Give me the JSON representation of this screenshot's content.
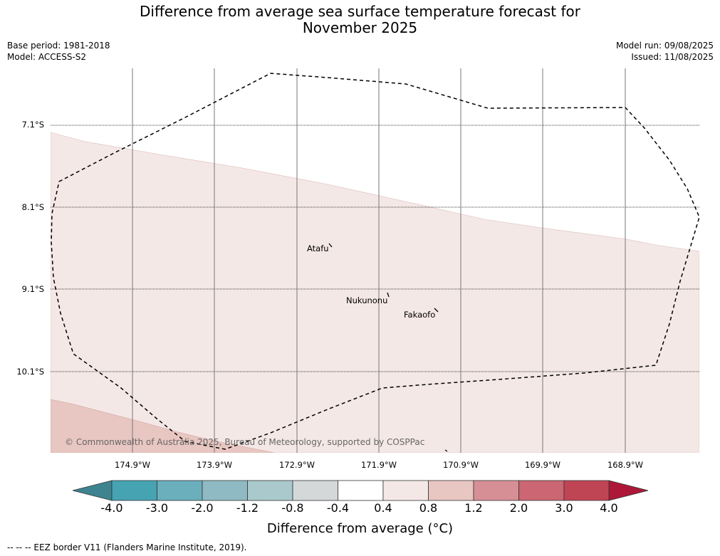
{
  "title_line1": "Difference from average sea surface temperature forecast for",
  "title_line2": "November 2025",
  "meta_left": [
    "Base period: 1981-2018",
    "Model: ACCESS-S2"
  ],
  "meta_right": [
    "Model run: 09/08/2025",
    "Issued: 11/08/2025"
  ],
  "lat_labels": [
    "7.1°S",
    "8.1°S",
    "9.1°S",
    "10.1°S"
  ],
  "lon_labels": [
    "174.9°W",
    "173.9°W",
    "172.9°W",
    "171.9°W",
    "170.9°W",
    "169.9°W",
    "168.9°W"
  ],
  "places": [
    "Atafu",
    "Nukunonu",
    "Fakaofo"
  ],
  "copyright": "© Commonwealth of Australia 2025, Bureau of Meteorology, supported by COSPPac",
  "colorbar": {
    "ticks": [
      "-4.0",
      "-3.0",
      "-2.0",
      "-1.2",
      "-0.8",
      "-0.4",
      "0.4",
      "0.8",
      "1.2",
      "2.0",
      "3.0",
      "4.0"
    ],
    "colors": [
      "#3e8390",
      "#46a3b2",
      "#6bafbd",
      "#8fbac4",
      "#aac9cd",
      "#d4d8d8",
      "#ffffff",
      "#f4e8e6",
      "#e8c6c1",
      "#d68f95",
      "#cb6672",
      "#bf4555",
      "#ad1838"
    ],
    "label": "Difference from average (°C)"
  },
  "anomaly_zones": [
    {
      "range": "0.4 to 0.8",
      "color": "#f4e8e6"
    },
    {
      "range": "0.8 to 1.2",
      "color": "#e8c6c1"
    }
  ],
  "legend_footnote": "-- -- -- EEZ border V11 (Flanders Marine Institute, 2019)."
}
